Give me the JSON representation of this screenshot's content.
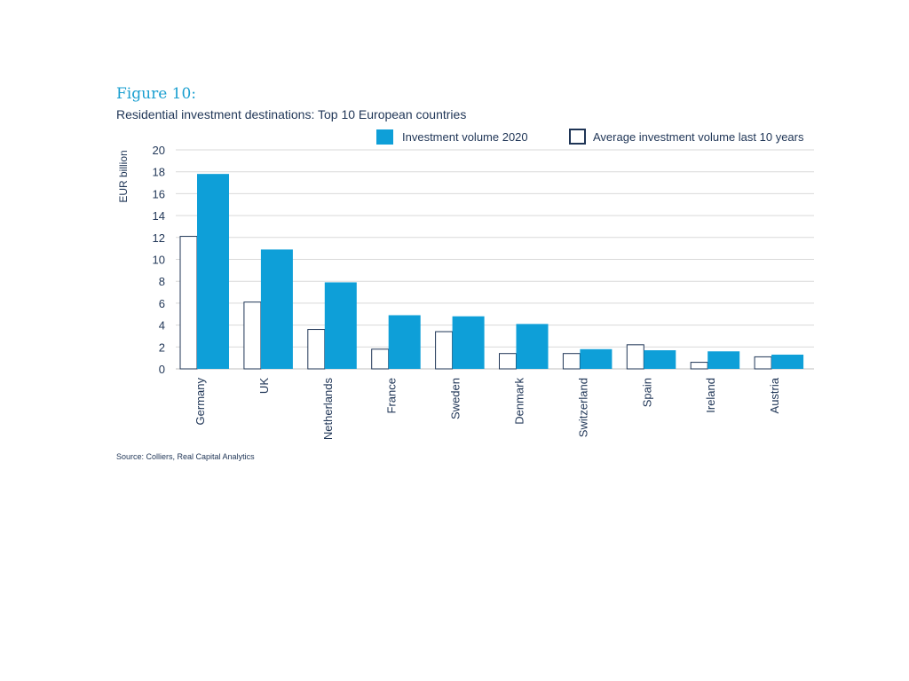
{
  "figure": {
    "label": "Figure 10:",
    "title": "Residential investment destinations: Top 10 European countries",
    "source": "Source: Colliers, Real Capital Analytics"
  },
  "colors": {
    "investment_2020": "#0e9fd8",
    "average_outline": "#1f3556",
    "grid": "#d9d9d9",
    "text": "#1f3556"
  },
  "chart_data": {
    "type": "bar",
    "title": "Residential investment destinations: Top 10 European countries",
    "ylabel": "EUR billion",
    "xlabel": "",
    "ylim": [
      0,
      20
    ],
    "yticks": [
      0,
      2,
      4,
      6,
      8,
      10,
      12,
      14,
      16,
      18,
      20
    ],
    "grid": "horizontal",
    "legend_position": "top-right",
    "categories": [
      "Germany",
      "UK",
      "Netherlands",
      "France",
      "Sweden",
      "Denmark",
      "Switzerland",
      "Spain",
      "Ireland",
      "Austria"
    ],
    "series": [
      {
        "name": "Average investment volume last 10 years",
        "style": "outline",
        "values": [
          12.1,
          6.1,
          3.6,
          1.8,
          3.4,
          1.4,
          1.4,
          2.2,
          0.6,
          1.1
        ]
      },
      {
        "name": "Investment volume 2020",
        "style": "filled",
        "values": [
          17.8,
          10.9,
          7.9,
          4.9,
          4.8,
          4.1,
          1.8,
          1.7,
          1.6,
          1.3
        ]
      }
    ]
  }
}
